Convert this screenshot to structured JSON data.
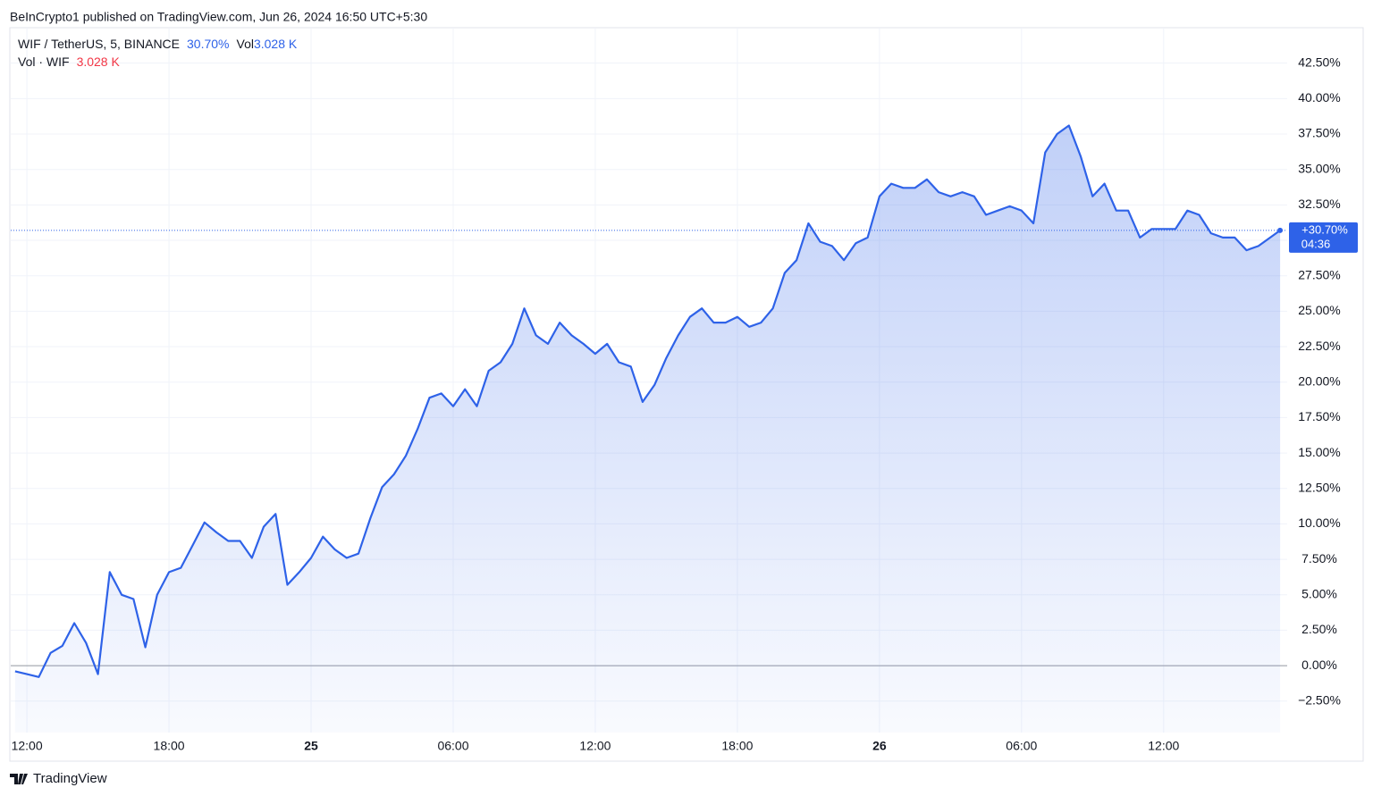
{
  "header": {
    "published": "BeInCrypto1 published on TradingView.com, Jun 26, 2024 16:50 UTC+5:30",
    "symbol": "WIF / TetherUS, 5, BINANCE",
    "change": "30.70%",
    "vol_label": "Vol",
    "vol_value": "3.028 K",
    "vol_pane": "Vol · WIF",
    "vol_pane_value": "3.028 K"
  },
  "footer": {
    "brand": "TradingView"
  },
  "chart_data": {
    "type": "area",
    "color": "#2e62e8",
    "grid": true,
    "baseline": 0,
    "x": [
      "24 11:30",
      "24 12:00",
      "24 12:30",
      "24 13:00",
      "24 13:30",
      "24 14:00",
      "24 14:30",
      "24 15:00",
      "24 15:30",
      "24 16:00",
      "24 16:30",
      "24 17:00",
      "24 17:30",
      "24 18:00",
      "24 18:30",
      "24 19:00",
      "24 19:30",
      "24 20:00",
      "24 20:30",
      "24 21:00",
      "24 21:30",
      "24 22:00",
      "24 22:30",
      "24 23:00",
      "24 23:30",
      "25 00:00",
      "25 00:30",
      "25 01:00",
      "25 01:30",
      "25 02:00",
      "25 02:30",
      "25 03:00",
      "25 03:30",
      "25 04:00",
      "25 04:30",
      "25 05:00",
      "25 05:30",
      "25 06:00",
      "25 06:30",
      "25 07:00",
      "25 07:30",
      "25 08:00",
      "25 08:30",
      "25 09:00",
      "25 09:30",
      "25 10:00",
      "25 10:30",
      "25 11:00",
      "25 11:30",
      "25 12:00",
      "25 12:30",
      "25 13:00",
      "25 13:30",
      "25 14:00",
      "25 14:30",
      "25 15:00",
      "25 15:30",
      "25 16:00",
      "25 16:30",
      "25 17:00",
      "25 17:30",
      "25 18:00",
      "25 18:30",
      "25 19:00",
      "25 19:30",
      "25 20:00",
      "25 20:30",
      "25 21:00",
      "25 21:30",
      "25 22:00",
      "25 22:30",
      "25 23:00",
      "25 23:30",
      "26 00:00",
      "26 00:30",
      "26 01:00",
      "26 01:30",
      "26 02:00",
      "26 02:30",
      "26 03:00",
      "26 03:30",
      "26 04:00",
      "26 04:30",
      "26 05:00",
      "26 05:30",
      "26 06:00",
      "26 06:30",
      "26 07:00",
      "26 07:30",
      "26 08:00",
      "26 08:30",
      "26 09:00",
      "26 09:30",
      "26 10:00",
      "26 10:30",
      "26 11:00",
      "26 11:30",
      "26 12:00",
      "26 12:30",
      "26 13:00",
      "26 13:30",
      "26 14:00",
      "26 14:30",
      "26 15:00",
      "26 15:30",
      "26 16:00",
      "26 16:30",
      "26 16:55"
    ],
    "values": [
      -0.4,
      -0.6,
      -0.8,
      0.9,
      1.4,
      3.0,
      1.6,
      -0.6,
      6.6,
      5.0,
      4.7,
      1.3,
      5.0,
      6.6,
      6.9,
      8.5,
      10.1,
      9.4,
      8.8,
      8.8,
      7.6,
      9.8,
      10.7,
      5.7,
      6.6,
      7.6,
      9.1,
      8.2,
      7.6,
      7.9,
      10.4,
      12.6,
      13.5,
      14.8,
      16.7,
      18.9,
      19.2,
      18.3,
      19.5,
      18.3,
      20.8,
      21.4,
      22.7,
      25.2,
      23.3,
      22.7,
      24.2,
      23.3,
      22.7,
      22.0,
      22.7,
      21.4,
      21.1,
      18.6,
      19.8,
      21.7,
      23.3,
      24.6,
      25.2,
      24.2,
      24.2,
      24.6,
      23.9,
      24.2,
      25.2,
      27.7,
      28.6,
      31.2,
      29.9,
      29.6,
      28.6,
      29.8,
      30.2,
      33.1,
      34.0,
      33.7,
      33.7,
      34.3,
      33.4,
      33.1,
      33.4,
      33.1,
      31.8,
      32.1,
      32.4,
      32.1,
      31.2,
      36.2,
      37.5,
      38.1,
      35.9,
      33.1,
      34.0,
      32.1,
      32.1,
      30.2,
      30.8,
      30.8,
      30.8,
      32.1,
      31.8,
      30.5,
      30.2,
      30.2,
      29.3,
      29.6,
      30.2,
      30.7
    ],
    "current": {
      "value": 30.7,
      "label": "+30.70%",
      "countdown": "04:36"
    },
    "xlim": [
      "24 11:19",
      "26 17:13"
    ],
    "xticks": [
      {
        "value": "24 12:00",
        "label": "12:00"
      },
      {
        "value": "24 18:00",
        "label": "18:00"
      },
      {
        "value": "25 00:00",
        "label": "25"
      },
      {
        "value": "25 06:00",
        "label": "06:00"
      },
      {
        "value": "25 12:00",
        "label": "12:00"
      },
      {
        "value": "25 18:00",
        "label": "18:00"
      },
      {
        "value": "26 00:00",
        "label": "26"
      },
      {
        "value": "26 06:00",
        "label": "06:00"
      },
      {
        "value": "26 12:00",
        "label": "12:00"
      }
    ],
    "ylim": [
      -4.72,
      45
    ],
    "yticks": [
      {
        "value": -2.5,
        "label": "−2.50%"
      },
      {
        "value": 0,
        "label": "0.00%"
      },
      {
        "value": 2.5,
        "label": "2.50%"
      },
      {
        "value": 5,
        "label": "5.00%"
      },
      {
        "value": 7.5,
        "label": "7.50%"
      },
      {
        "value": 10,
        "label": "10.00%"
      },
      {
        "value": 12.5,
        "label": "12.50%"
      },
      {
        "value": 15,
        "label": "15.00%"
      },
      {
        "value": 17.5,
        "label": "17.50%"
      },
      {
        "value": 20,
        "label": "20.00%"
      },
      {
        "value": 22.5,
        "label": "22.50%"
      },
      {
        "value": 25,
        "label": "25.00%"
      },
      {
        "value": 27.5,
        "label": "27.50%"
      },
      {
        "value": 30,
        "label": "30.00%"
      },
      {
        "value": 32.5,
        "label": "32.50%"
      },
      {
        "value": 35,
        "label": "35.00%"
      },
      {
        "value": 37.5,
        "label": "37.50%"
      },
      {
        "value": 40,
        "label": "40.00%"
      },
      {
        "value": 42.5,
        "label": "42.50%"
      }
    ]
  }
}
